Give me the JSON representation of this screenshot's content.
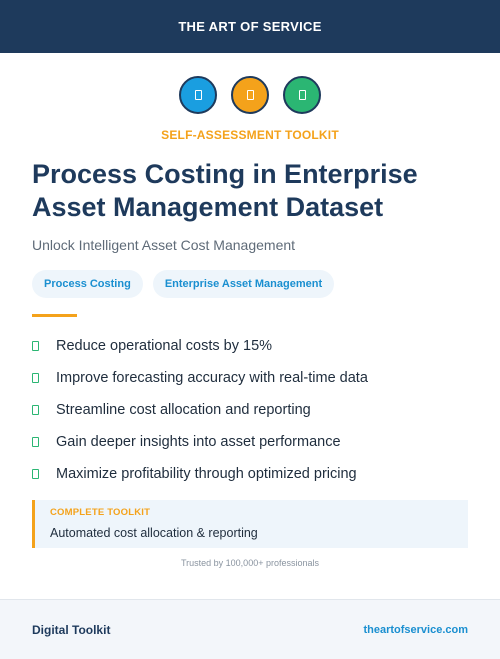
{
  "header": {
    "title": "THE ART OF SERVICE"
  },
  "icons": [
    {
      "name": "document-icon",
      "color": "#1a9ee0"
    },
    {
      "name": "document-icon",
      "color": "#f4a21b"
    },
    {
      "name": "document-icon",
      "color": "#2bb673"
    }
  ],
  "eyebrow": "SELF-ASSESSMENT TOOLKIT",
  "title": "Process Costing in Enterprise Asset Management Dataset",
  "subtitle": "Unlock Intelligent Asset Cost Management",
  "tags": [
    "Process Costing",
    "Enterprise Asset Management"
  ],
  "benefits": [
    "Reduce operational costs by 15%",
    "Improve forecasting accuracy with real-time data",
    "Streamline cost allocation and reporting",
    "Gain deeper insights into asset performance",
    "Maximize profitability through optimized pricing"
  ],
  "callout": {
    "label": "COMPLETE TOOLKIT",
    "text": "Automated cost allocation & reporting"
  },
  "trust": "Trusted by 100,000+ professionals",
  "footer": {
    "left": "Digital Toolkit",
    "right": "theartofservice.com"
  },
  "colors": {
    "navy": "#1e3a5c",
    "orange": "#f4a21b",
    "blue": "#1a8fd0",
    "green": "#2bb673"
  }
}
